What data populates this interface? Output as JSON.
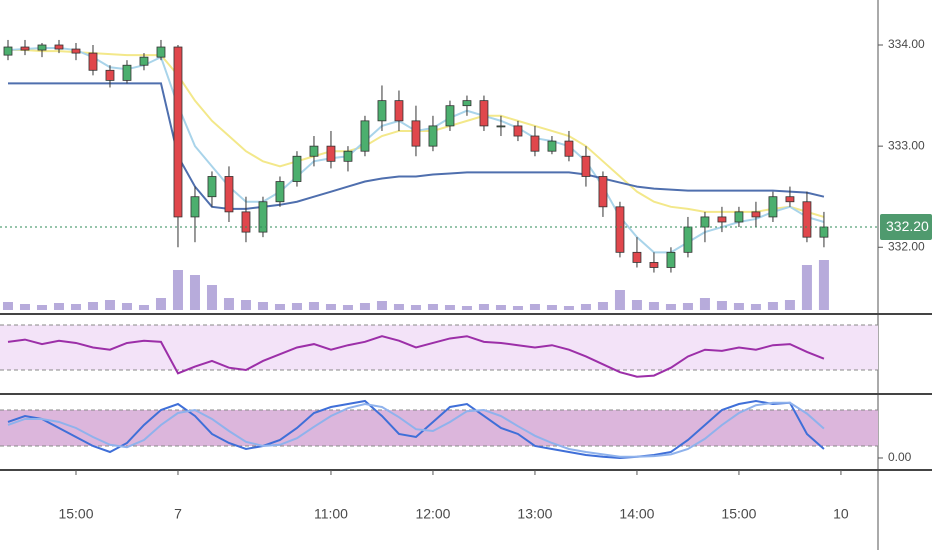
{
  "chart_data": [
    {
      "type": "candlestick",
      "open": [
        333.9,
        333.98,
        333.95,
        334.0,
        333.96,
        333.92,
        333.75,
        333.65,
        333.8,
        333.88,
        333.98,
        332.3,
        332.5,
        332.7,
        332.35,
        332.15,
        332.45,
        332.65,
        332.9,
        333.0,
        332.85,
        332.95,
        333.25,
        333.45,
        333.25,
        333.0,
        333.2,
        333.4,
        333.45,
        333.2,
        333.2,
        333.1,
        332.95,
        333.05,
        332.9,
        332.7,
        332.4,
        331.95,
        331.85,
        331.8,
        331.95,
        332.2,
        332.3,
        332.25,
        332.35,
        332.3,
        332.5,
        332.45,
        332.1
      ],
      "high": [
        334.05,
        334.05,
        334.02,
        334.05,
        334.02,
        334.0,
        333.8,
        333.85,
        333.92,
        334.05,
        334.0,
        332.6,
        332.75,
        332.8,
        332.5,
        332.5,
        332.7,
        332.95,
        333.1,
        333.15,
        333.0,
        333.3,
        333.6,
        333.55,
        333.4,
        333.3,
        333.45,
        333.5,
        333.5,
        333.3,
        333.25,
        333.2,
        333.1,
        333.15,
        333.0,
        332.75,
        332.45,
        332.1,
        331.95,
        332.0,
        332.3,
        332.35,
        332.4,
        332.4,
        332.45,
        332.55,
        332.6,
        332.55,
        332.35
      ],
      "low": [
        333.85,
        333.9,
        333.88,
        333.92,
        333.85,
        333.7,
        333.58,
        333.62,
        333.75,
        333.85,
        332.0,
        332.05,
        332.4,
        332.25,
        332.05,
        332.1,
        332.4,
        332.6,
        332.8,
        332.78,
        332.75,
        332.9,
        333.15,
        333.15,
        332.9,
        332.95,
        333.15,
        333.3,
        333.15,
        333.1,
        333.05,
        332.9,
        332.92,
        332.85,
        332.6,
        332.3,
        331.9,
        331.8,
        331.75,
        331.75,
        331.9,
        332.05,
        332.15,
        332.2,
        332.2,
        332.25,
        332.4,
        332.05,
        332.0
      ],
      "close": [
        333.98,
        333.95,
        334.0,
        333.96,
        333.92,
        333.75,
        333.65,
        333.8,
        333.88,
        333.98,
        332.3,
        332.5,
        332.7,
        332.35,
        332.15,
        332.45,
        332.65,
        332.9,
        333.0,
        332.85,
        332.95,
        333.25,
        333.45,
        333.25,
        333.0,
        333.2,
        333.4,
        333.45,
        333.2,
        333.2,
        333.1,
        332.95,
        333.05,
        332.9,
        332.7,
        332.4,
        331.95,
        331.85,
        331.8,
        331.95,
        332.2,
        332.3,
        332.25,
        332.35,
        332.3,
        332.5,
        332.45,
        332.1,
        332.2
      ],
      "up_color": "#4caf6e",
      "down_color": "#e0474c",
      "ylim": [
        331.36,
        334.445
      ],
      "yticks": [
        {
          "value": 334,
          "label": "334.00"
        },
        {
          "value": 333,
          "label": "333.00"
        },
        {
          "value": 332,
          "label": "332.00"
        }
      ],
      "last_price": {
        "value": 332.2,
        "label": "332.20"
      },
      "xlim": [
        -0.47,
        51.18
      ],
      "xticks": [
        {
          "value": 4,
          "label": "15:00"
        },
        {
          "value": 10,
          "label": "7"
        },
        {
          "value": 19,
          "label": "11:00"
        },
        {
          "value": 25,
          "label": "12:00"
        },
        {
          "value": 31,
          "label": "13:00"
        },
        {
          "value": 37,
          "label": "14:00"
        },
        {
          "value": 43,
          "label": "15:00"
        },
        {
          "value": 49,
          "label": "10"
        }
      ],
      "series": [
        {
          "color": "#f3e88a",
          "values": [
            333.95,
            333.95,
            333.94,
            333.94,
            333.93,
            333.92,
            333.91,
            333.9,
            333.9,
            333.9,
            333.7,
            333.45,
            333.25,
            333.1,
            332.95,
            332.85,
            332.8,
            332.85,
            332.9,
            332.95,
            332.95,
            333.0,
            333.1,
            333.15,
            333.15,
            333.15,
            333.2,
            333.25,
            333.3,
            333.3,
            333.25,
            333.2,
            333.15,
            333.1,
            333.0,
            332.85,
            332.7,
            332.55,
            332.45,
            332.4,
            332.38,
            332.35,
            332.35,
            332.35,
            332.35,
            332.38,
            332.4,
            332.35,
            332.3
          ]
        },
        {
          "color": "#a9d4ea",
          "values": [
            333.95,
            333.96,
            333.97,
            333.97,
            333.95,
            333.88,
            333.78,
            333.76,
            333.8,
            333.88,
            333.4,
            333.0,
            332.8,
            332.6,
            332.45,
            332.45,
            332.55,
            332.7,
            332.85,
            332.88,
            332.9,
            333.05,
            333.2,
            333.25,
            333.15,
            333.18,
            333.28,
            333.35,
            333.3,
            333.25,
            333.18,
            333.08,
            333.05,
            333.0,
            332.85,
            332.6,
            332.3,
            332.1,
            331.95,
            331.95,
            332.05,
            332.15,
            332.2,
            332.25,
            332.28,
            332.35,
            332.4,
            332.3,
            332.25
          ]
        },
        {
          "color": "#4f6fae",
          "values": [
            333.62,
            333.62,
            333.62,
            333.62,
            333.62,
            333.62,
            333.62,
            333.62,
            333.62,
            333.62,
            332.9,
            332.6,
            332.4,
            332.38,
            332.38,
            332.4,
            332.42,
            332.45,
            332.5,
            332.55,
            332.6,
            332.65,
            332.68,
            332.7,
            332.7,
            332.72,
            332.73,
            332.74,
            332.74,
            332.74,
            332.74,
            332.74,
            332.74,
            332.74,
            332.72,
            332.68,
            332.64,
            332.6,
            332.58,
            332.57,
            332.56,
            332.56,
            332.56,
            332.56,
            332.56,
            332.56,
            332.55,
            332.54,
            332.5
          ]
        }
      ],
      "volume": {
        "color": "#9f8fcf",
        "ylim": [
          0,
          60
        ],
        "values": [
          8,
          6,
          5,
          7,
          6,
          8,
          10,
          7,
          5,
          12,
          40,
          35,
          25,
          12,
          10,
          8,
          6,
          7,
          8,
          6,
          5,
          7,
          9,
          6,
          5,
          6,
          5,
          4,
          6,
          5,
          4,
          6,
          5,
          4,
          6,
          8,
          20,
          10,
          8,
          6,
          7,
          12,
          9,
          7,
          6,
          8,
          10,
          45,
          50
        ]
      }
    },
    {
      "type": "line",
      "ylim": [
        10.4,
        76.2
      ],
      "bands": [
        30,
        70
      ],
      "band_color": "#f3e3f8",
      "series": [
        {
          "color": "#9c2fa8",
          "values": [
            55,
            57,
            53,
            56,
            54,
            50,
            48,
            54,
            56,
            55,
            27,
            33,
            38,
            32,
            30,
            38,
            44,
            50,
            53,
            48,
            52,
            55,
            60,
            56,
            50,
            54,
            58,
            60,
            55,
            54,
            52,
            50,
            52,
            48,
            42,
            35,
            28,
            24,
            25,
            32,
            42,
            48,
            47,
            50,
            48,
            52,
            53,
            46,
            40
          ]
        }
      ]
    },
    {
      "type": "line",
      "ylim": [
        -16.7,
        100
      ],
      "bands": [
        20,
        80
      ],
      "band_color": "#dcb6dc",
      "yticks": [
        {
          "value": 0,
          "label": "0.00"
        }
      ],
      "series": [
        {
          "color": "#3f6fd8",
          "values": [
            60,
            70,
            65,
            50,
            35,
            20,
            10,
            25,
            55,
            80,
            90,
            70,
            40,
            25,
            15,
            20,
            30,
            50,
            75,
            85,
            90,
            95,
            70,
            40,
            35,
            60,
            85,
            90,
            70,
            50,
            40,
            20,
            15,
            10,
            5,
            2,
            0,
            2,
            5,
            10,
            30,
            55,
            80,
            90,
            95,
            90,
            92,
            40,
            15
          ]
        },
        {
          "color": "#8fb2ec",
          "values": [
            55,
            65,
            65,
            60,
            50,
            35,
            22,
            18,
            30,
            55,
            75,
            80,
            65,
            45,
            27,
            20,
            22,
            33,
            52,
            70,
            83,
            90,
            85,
            68,
            48,
            45,
            60,
            78,
            80,
            70,
            53,
            37,
            25,
            15,
            10,
            6,
            2,
            2,
            3,
            6,
            15,
            32,
            55,
            75,
            88,
            92,
            92,
            74,
            49
          ]
        }
      ]
    }
  ]
}
